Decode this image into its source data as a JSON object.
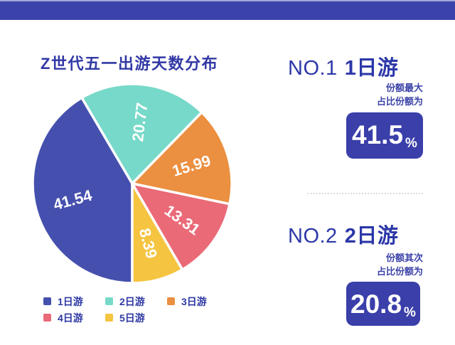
{
  "chart_data": {
    "type": "pie",
    "title": "Z世代五一出游天数分布",
    "categories": [
      "1日游",
      "2日游",
      "3日游",
      "4日游",
      "5日游"
    ],
    "values": [
      41.54,
      20.77,
      15.99,
      13.31,
      8.39
    ],
    "value_labels": [
      "41.54",
      "20.77",
      "15.99",
      "13.31",
      "8.39"
    ],
    "colors": [
      "#4550ae",
      "#77d9c9",
      "#eb8f40",
      "#ea6a78",
      "#f5c441"
    ],
    "start_angle_deg": 180,
    "direction": "clockwise",
    "label_color": "#ffffff",
    "legend_position": "bottom-left"
  },
  "rankings": [
    {
      "rank_label": "NO.1",
      "category": "1日游",
      "note_line1": "份额最大",
      "note_line2": "占比份额为",
      "value": "41.5",
      "unit": "%"
    },
    {
      "rank_label": "NO.2",
      "category": "2日游",
      "note_line1": "份额其次",
      "note_line2": "占比份额为",
      "value": "20.8",
      "unit": "%"
    }
  ],
  "colors": {
    "header_bar": "#3c42ab",
    "badge_background": "#3a3fa9",
    "heading_text": "#2c38a8",
    "divider": "#dcdcdc"
  }
}
